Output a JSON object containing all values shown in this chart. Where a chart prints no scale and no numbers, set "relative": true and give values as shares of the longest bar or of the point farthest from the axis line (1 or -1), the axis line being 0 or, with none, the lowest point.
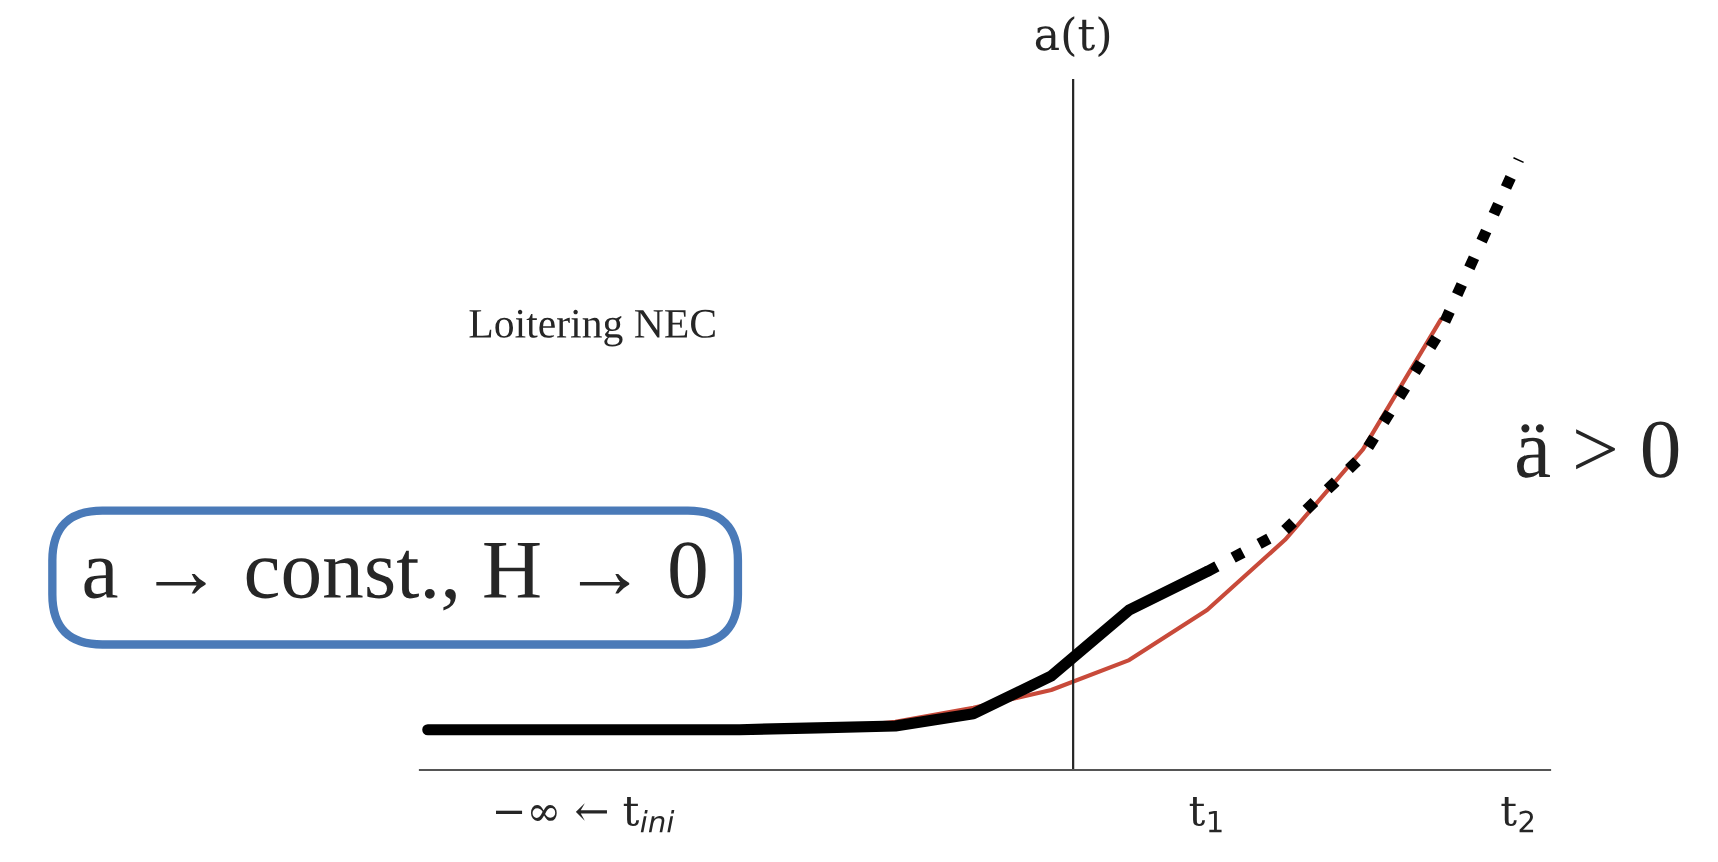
{
  "chart_data": {
    "type": "line",
    "relative": true,
    "ylabel": "a(t)",
    "marker": "none",
    "categories": [
      null,
      null,
      "−∞ ← t$_{ini}$",
      null,
      null,
      null,
      null,
      null,
      null,
      null,
      "t$_{1}$",
      null,
      null,
      null,
      "t$_{2}$"
    ],
    "series": [
      {
        "color": "#000000",
        "line_style": "solid",
        "values": [
          0.066,
          0.066,
          0.066,
          0.066,
          0.066,
          0.069,
          0.072,
          0.092,
          0.154,
          0.262,
          0.325,
          null,
          null,
          null,
          null
        ]
      },
      {
        "color": "#000000",
        "line_style": "dotted",
        "values": [
          null,
          null,
          null,
          null,
          null,
          null,
          null,
          null,
          null,
          null,
          0.325,
          0.393,
          0.515,
          0.72,
          1.0
        ]
      },
      {
        "color": "#c84a3a",
        "line_style": "solid",
        "values": [
          null,
          null,
          null,
          null,
          null,
          0.066,
          0.079,
          0.102,
          0.131,
          0.18,
          0.262,
          0.377,
          0.525,
          0.738,
          null
        ]
      }
    ],
    "annotations": [
      "Loitering NEC",
      "ä > 0",
      "a → const., H → 0"
    ]
  }
}
